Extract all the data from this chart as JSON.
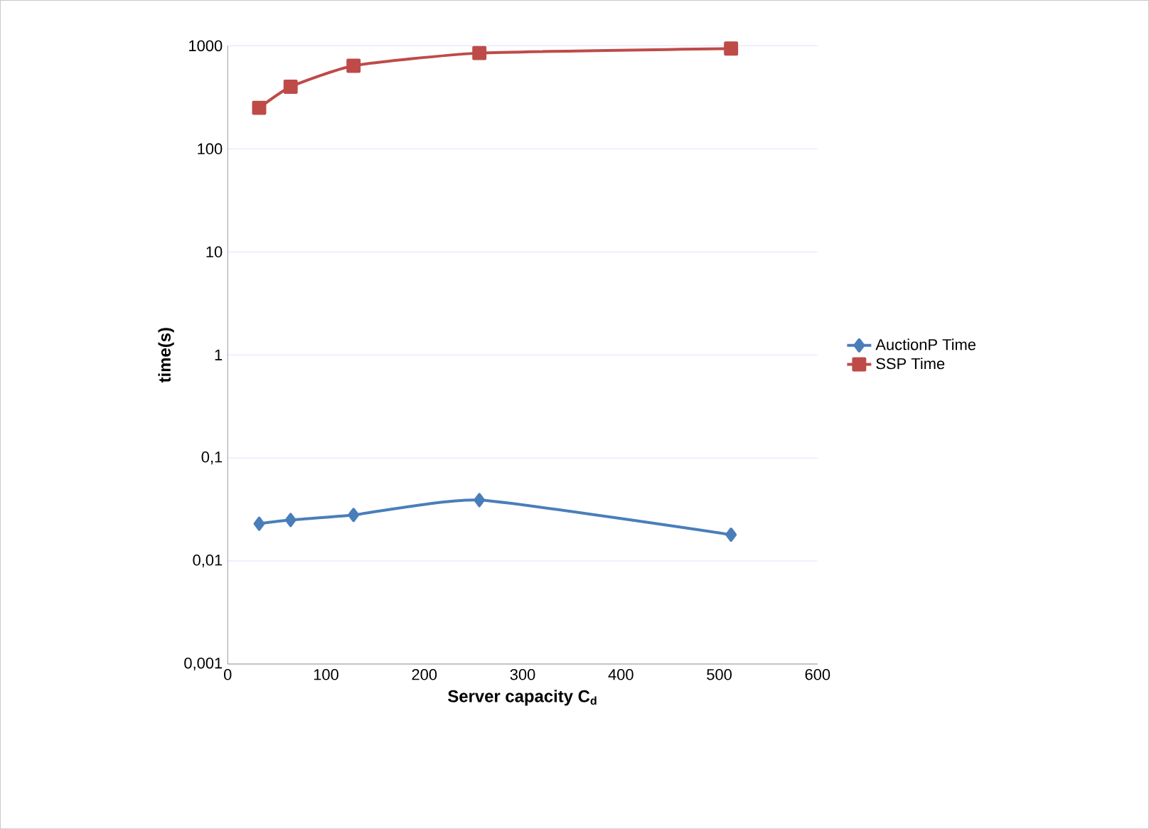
{
  "chart_data": {
    "type": "line",
    "xlabel": "Server capacity C$_{d}$",
    "ylabel": "time(s)",
    "x": [
      32,
      64,
      128,
      256,
      512
    ],
    "series": [
      {
        "name": "AuctionP Time",
        "color": "#4a7ebb",
        "marker": "diamond",
        "values": [
          0.023,
          0.025,
          0.028,
          0.039,
          0.018
        ]
      },
      {
        "name": "SSP Time",
        "color": "#be4b48",
        "marker": "square",
        "values": [
          250,
          400,
          640,
          850,
          940
        ]
      }
    ],
    "log": "y",
    "xlim": [
      0,
      600
    ],
    "xticks": [
      0,
      100,
      200,
      300,
      400,
      500,
      600
    ],
    "ylim": [
      0.001,
      1000
    ],
    "yticks": [
      {
        "value": 0.001,
        "label": "0,001"
      },
      {
        "value": 0.01,
        "label": "0,01"
      },
      {
        "value": 0.1,
        "label": "0,1"
      },
      1,
      10,
      100,
      1000
    ],
    "grid": "y",
    "legend": "right"
  }
}
